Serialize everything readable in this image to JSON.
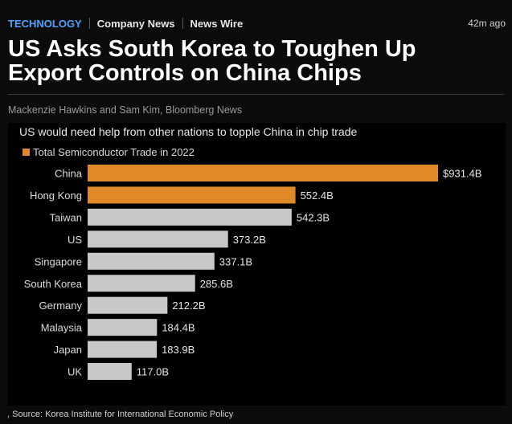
{
  "topbar": {
    "section": "TECHNOLOGY",
    "tags": [
      "Company News",
      "News Wire"
    ],
    "time": "42m ago"
  },
  "article": {
    "headline": "US Asks South Korea to Toughen Up Export Controls on China Chips",
    "byline": "Mackenzie Hawkins and Sam Kim, Bloomberg News",
    "source": ", Source: Korea Institute for International Economic Policy"
  },
  "colors": {
    "highlight": "#e08a27",
    "bar": "#c8c8c8",
    "accent_link": "#4fa3ff"
  },
  "chart_data": {
    "type": "bar",
    "orientation": "horizontal",
    "title": "US would need help from other nations to topple China in chip trade",
    "legend": [
      "Total Semiconductor Trade in 2022"
    ],
    "categories": [
      "China",
      "Hong Kong",
      "Taiwan",
      "US",
      "Singapore",
      "South Korea",
      "Germany",
      "Malaysia",
      "Japan",
      "UK"
    ],
    "values": [
      931.4,
      552.4,
      542.3,
      373.2,
      337.1,
      285.6,
      212.2,
      184.4,
      183.9,
      117.0
    ],
    "value_labels": [
      "$931.4B",
      "552.4B",
      "542.3B",
      "373.2B",
      "337.1B",
      "285.6B",
      "212.2B",
      "184.4B",
      "183.9B",
      "117.0B"
    ],
    "highlighted": [
      "China",
      "Hong Kong"
    ],
    "unit": "billion USD",
    "xlim": [
      0,
      931.4
    ],
    "grid": false
  }
}
